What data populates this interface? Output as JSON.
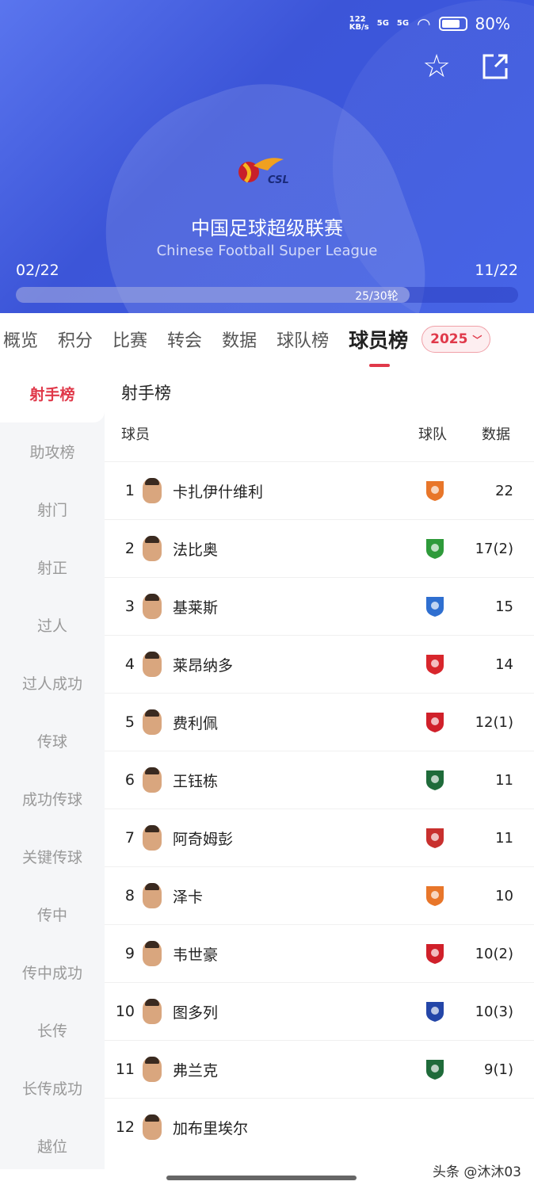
{
  "status_bar": {
    "net_speed": "122",
    "net_unit": "KB/s",
    "signal1": "5G",
    "signal2": "5G",
    "battery": "80%"
  },
  "header": {
    "title": "中国足球超级联赛",
    "subtitle": "Chinese Football Super League",
    "logo_text": "CSL",
    "start_date": "02/22",
    "end_date": "11/22",
    "round_label": "25/30轮",
    "round_progress": 0.8333,
    "favorite_icon": "star-icon",
    "share_icon": "share-icon"
  },
  "tabs": [
    {
      "label": "概览"
    },
    {
      "label": "积分"
    },
    {
      "label": "比赛"
    },
    {
      "label": "转会"
    },
    {
      "label": "数据"
    },
    {
      "label": "球队榜"
    },
    {
      "label": "球员榜",
      "active": true
    }
  ],
  "season": {
    "value": "2025"
  },
  "sidebar": {
    "items": [
      "射手榜",
      "助攻榜",
      "射门",
      "射正",
      "过人",
      "过人成功",
      "传球",
      "成功传球",
      "关键传球",
      "传中",
      "传中成功",
      "长传",
      "长传成功",
      "越位"
    ],
    "active": 0
  },
  "table": {
    "title": "射手榜",
    "columns": {
      "player": "球员",
      "team": "球队",
      "data": "数据"
    },
    "rows": [
      {
        "rank": "1",
        "name": "卡扎伊什维利",
        "value": "22",
        "badge": "#e8762a"
      },
      {
        "rank": "2",
        "name": "法比奥",
        "value": "17(2)",
        "badge": "#2e9a3a"
      },
      {
        "rank": "3",
        "name": "基莱斯",
        "value": "15",
        "badge": "#2f6fd0"
      },
      {
        "rank": "4",
        "name": "莱昂纳多",
        "value": "14",
        "badge": "#d8262c"
      },
      {
        "rank": "5",
        "name": "费利佩",
        "value": "12(1)",
        "badge": "#d0202a"
      },
      {
        "rank": "6",
        "name": "王钰栋",
        "value": "11",
        "badge": "#1f6b3a"
      },
      {
        "rank": "7",
        "name": "阿奇姆彭",
        "value": "11",
        "badge": "#c8302e"
      },
      {
        "rank": "8",
        "name": "泽卡",
        "value": "10",
        "badge": "#e8762a"
      },
      {
        "rank": "9",
        "name": "韦世豪",
        "value": "10(2)",
        "badge": "#d0202a"
      },
      {
        "rank": "10",
        "name": "图多列",
        "value": "10(3)",
        "badge": "#2446a8"
      },
      {
        "rank": "11",
        "name": "弗兰克",
        "value": "9(1)",
        "badge": "#1f6b3a"
      },
      {
        "rank": "12",
        "name": "加布里埃尔",
        "value": "",
        "badge": ""
      }
    ]
  },
  "watermark": "头条 @沐沐03",
  "colors": {
    "accent": "#e0394a",
    "hero": "#3c55d8"
  }
}
